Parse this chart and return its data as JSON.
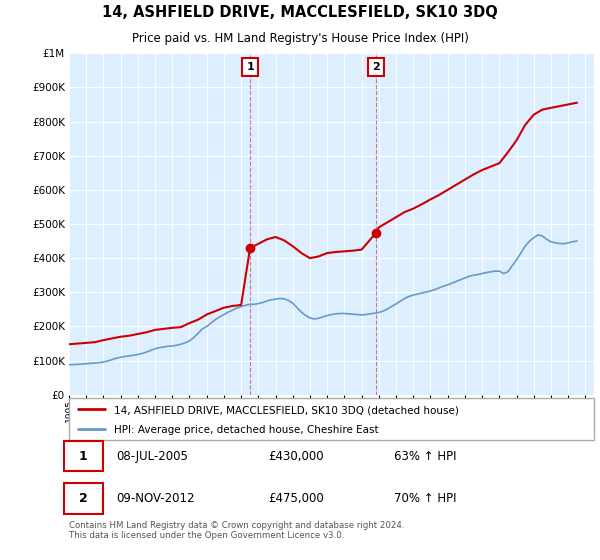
{
  "title": "14, ASHFIELD DRIVE, MACCLESFIELD, SK10 3DQ",
  "subtitle": "Price paid vs. HM Land Registry's House Price Index (HPI)",
  "legend_property": "14, ASHFIELD DRIVE, MACCLESFIELD, SK10 3DQ (detached house)",
  "legend_hpi": "HPI: Average price, detached house, Cheshire East",
  "footnote": "Contains HM Land Registry data © Crown copyright and database right 2024.\nThis data is licensed under the Open Government Licence v3.0.",
  "transactions": [
    {
      "label": "1",
      "date": "08-JUL-2005",
      "price": 430000,
      "pct": "63% ↑ HPI",
      "year": 2005.52
    },
    {
      "label": "2",
      "date": "09-NOV-2012",
      "price": 475000,
      "pct": "70% ↑ HPI",
      "year": 2012.85
    }
  ],
  "property_color": "#cc0000",
  "hpi_color": "#6699cc",
  "background_color": "#ffffff",
  "plot_bg_color": "#ddeeff",
  "grid_color": "#ffffff",
  "ylim": [
    0,
    1000000
  ],
  "xlim_start": 1995,
  "xlim_end": 2025.5,
  "hpi_data": {
    "years": [
      1995.0,
      1995.25,
      1995.5,
      1995.75,
      1996.0,
      1996.25,
      1996.5,
      1996.75,
      1997.0,
      1997.25,
      1997.5,
      1997.75,
      1998.0,
      1998.25,
      1998.5,
      1998.75,
      1999.0,
      1999.25,
      1999.5,
      1999.75,
      2000.0,
      2000.25,
      2000.5,
      2000.75,
      2001.0,
      2001.25,
      2001.5,
      2001.75,
      2002.0,
      2002.25,
      2002.5,
      2002.75,
      2003.0,
      2003.25,
      2003.5,
      2003.75,
      2004.0,
      2004.25,
      2004.5,
      2004.75,
      2005.0,
      2005.25,
      2005.5,
      2005.75,
      2006.0,
      2006.25,
      2006.5,
      2006.75,
      2007.0,
      2007.25,
      2007.5,
      2007.75,
      2008.0,
      2008.25,
      2008.5,
      2008.75,
      2009.0,
      2009.25,
      2009.5,
      2009.75,
      2010.0,
      2010.25,
      2010.5,
      2010.75,
      2011.0,
      2011.25,
      2011.5,
      2011.75,
      2012.0,
      2012.25,
      2012.5,
      2012.75,
      2013.0,
      2013.25,
      2013.5,
      2013.75,
      2014.0,
      2014.25,
      2014.5,
      2014.75,
      2015.0,
      2015.25,
      2015.5,
      2015.75,
      2016.0,
      2016.25,
      2016.5,
      2016.75,
      2017.0,
      2017.25,
      2017.5,
      2017.75,
      2018.0,
      2018.25,
      2018.5,
      2018.75,
      2019.0,
      2019.25,
      2019.5,
      2019.75,
      2020.0,
      2020.25,
      2020.5,
      2020.75,
      2021.0,
      2021.25,
      2021.5,
      2021.75,
      2022.0,
      2022.25,
      2022.5,
      2022.75,
      2023.0,
      2023.25,
      2023.5,
      2023.75,
      2024.0,
      2024.25,
      2024.5
    ],
    "values": [
      88000,
      88500,
      89000,
      90000,
      91000,
      92000,
      93000,
      94000,
      96000,
      99000,
      103000,
      107000,
      110000,
      112000,
      114000,
      116000,
      118000,
      121000,
      125000,
      130000,
      135000,
      138000,
      140000,
      142000,
      143000,
      145000,
      148000,
      152000,
      158000,
      168000,
      180000,
      193000,
      200000,
      210000,
      220000,
      228000,
      235000,
      242000,
      248000,
      254000,
      258000,
      262000,
      265000,
      265000,
      267000,
      270000,
      275000,
      278000,
      280000,
      282000,
      281000,
      276000,
      268000,
      255000,
      242000,
      232000,
      225000,
      222000,
      224000,
      228000,
      232000,
      235000,
      237000,
      238000,
      238000,
      237000,
      236000,
      235000,
      234000,
      235000,
      237000,
      239000,
      241000,
      245000,
      251000,
      259000,
      266000,
      274000,
      282000,
      288000,
      292000,
      295000,
      298000,
      301000,
      304000,
      308000,
      313000,
      318000,
      322000,
      327000,
      332000,
      337000,
      342000,
      347000,
      350000,
      352000,
      355000,
      358000,
      360000,
      362000,
      362000,
      355000,
      360000,
      378000,
      395000,
      415000,
      435000,
      450000,
      460000,
      468000,
      465000,
      455000,
      448000,
      445000,
      443000,
      442000,
      445000,
      448000,
      450000
    ]
  },
  "property_data": {
    "years": [
      1995.0,
      1995.5,
      1996.0,
      1996.5,
      1997.0,
      1997.5,
      1998.0,
      1998.5,
      1999.0,
      1999.5,
      2000.0,
      2000.5,
      2001.0,
      2001.5,
      2002.0,
      2002.5,
      2003.0,
      2003.5,
      2004.0,
      2004.5,
      2005.0,
      2005.52,
      2006.0,
      2006.5,
      2007.0,
      2007.5,
      2008.0,
      2008.5,
      2009.0,
      2009.5,
      2010.0,
      2010.5,
      2011.0,
      2011.5,
      2012.0,
      2012.85,
      2013.0,
      2013.5,
      2014.0,
      2014.5,
      2015.0,
      2015.5,
      2016.0,
      2016.5,
      2017.0,
      2017.5,
      2018.0,
      2018.5,
      2019.0,
      2019.5,
      2020.0,
      2020.5,
      2021.0,
      2021.5,
      2022.0,
      2022.5,
      2023.0,
      2023.5,
      2024.0,
      2024.5
    ],
    "values": [
      148000,
      150000,
      152000,
      154000,
      160000,
      165000,
      170000,
      173000,
      178000,
      183000,
      190000,
      193000,
      196000,
      198000,
      210000,
      220000,
      235000,
      245000,
      255000,
      260000,
      263000,
      430000,
      442000,
      455000,
      462000,
      452000,
      435000,
      415000,
      400000,
      405000,
      415000,
      418000,
      420000,
      422000,
      425000,
      475000,
      490000,
      505000,
      520000,
      535000,
      545000,
      558000,
      572000,
      585000,
      600000,
      615000,
      630000,
      645000,
      658000,
      668000,
      678000,
      710000,
      745000,
      790000,
      820000,
      835000,
      840000,
      845000,
      850000,
      855000
    ]
  }
}
